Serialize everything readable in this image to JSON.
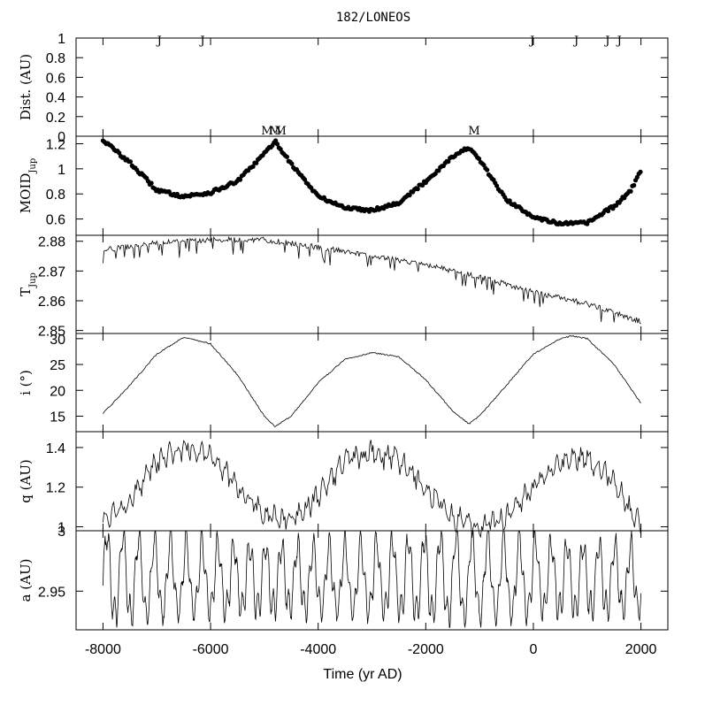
{
  "title": "182/LONEOS",
  "xlabel": "Time (yr AD)",
  "x_ticks": [
    -8000,
    -6000,
    -4000,
    -2000,
    0,
    2000
  ],
  "xlim": [
    -8500,
    2500
  ],
  "panels": [
    {
      "id": "dist",
      "ylabel": "Dist. (AU)",
      "ylim": [
        0,
        1
      ],
      "yticks": [
        0,
        0.2,
        0.4,
        0.6,
        0.8,
        1
      ],
      "tick_labels": [
        "0",
        "0.2",
        "0.4",
        "0.6",
        "0.8",
        "1"
      ]
    },
    {
      "id": "moid",
      "ylabel": "MOID",
      "ylabel_sub": "Jup",
      "ylim": [
        0.47,
        1.26
      ],
      "yticks": [
        0.6,
        0.8,
        1,
        1.2
      ],
      "tick_labels": [
        "0.6",
        "0.8",
        "1",
        "1.2"
      ]
    },
    {
      "id": "tjup",
      "ylabel": "T",
      "ylabel_sub": "Jup",
      "ylim": [
        2.849,
        2.882
      ],
      "yticks": [
        2.85,
        2.86,
        2.87,
        2.88
      ],
      "tick_labels": [
        "2.85",
        "2.86",
        "2.87",
        "2.88"
      ]
    },
    {
      "id": "incl",
      "ylabel": "i (°)",
      "ylim": [
        12,
        31
      ],
      "yticks": [
        15,
        20,
        25,
        30
      ],
      "tick_labels": [
        "15",
        "20",
        "25",
        "30"
      ]
    },
    {
      "id": "q",
      "ylabel": "q (AU)",
      "ylim": [
        0.98,
        1.48
      ],
      "yticks": [
        1,
        1.2,
        1.4
      ],
      "tick_labels": [
        "1",
        "1.2",
        "1.4"
      ]
    },
    {
      "id": "a",
      "ylabel": "a (AU)",
      "ylim": [
        2.918,
        3.0
      ],
      "yticks": [
        2.95,
        3
      ],
      "tick_labels": [
        "2.95",
        "3"
      ]
    }
  ],
  "chart_data": {
    "type": "scatter",
    "title": "182/LONEOS",
    "xlabel": "Time (yr AD)",
    "encounters_dist_panel": [
      {
        "label": "J",
        "x": -6950
      },
      {
        "label": "J",
        "x": -6150
      },
      {
        "label": "J",
        "x": -20
      },
      {
        "label": "J",
        "x": 800
      },
      {
        "label": "J",
        "x": 1380
      },
      {
        "label": "J",
        "x": 1600
      }
    ],
    "encounters_moid_panel": [
      {
        "label": "M",
        "x": -4950
      },
      {
        "label": "M",
        "x": -4800
      },
      {
        "label": "M",
        "x": -4700
      },
      {
        "label": "M",
        "x": -1100
      }
    ],
    "series": [
      {
        "name": "MOID_Jup",
        "style": "dots",
        "x": [
          -8000,
          -7500,
          -7000,
          -6500,
          -6000,
          -5500,
          -5000,
          -4800,
          -4500,
          -4000,
          -3500,
          -3000,
          -2500,
          -2000,
          -1500,
          -1200,
          -1000,
          -500,
          0,
          500,
          1000,
          1500,
          1800,
          2000
        ],
        "y": [
          1.23,
          1.05,
          0.83,
          0.78,
          0.81,
          0.9,
          1.12,
          1.22,
          1.04,
          0.78,
          0.69,
          0.67,
          0.73,
          0.9,
          1.1,
          1.17,
          1.07,
          0.75,
          0.62,
          0.56,
          0.57,
          0.7,
          0.82,
          0.99
        ]
      },
      {
        "name": "T_Jup",
        "style": "line",
        "x": [
          -8000,
          -7000,
          -6000,
          -5000,
          -4000,
          -3000,
          -2000,
          -1000,
          0,
          1000,
          2000
        ],
        "y": [
          2.877,
          2.8795,
          2.8805,
          2.8805,
          2.878,
          2.875,
          2.872,
          2.868,
          2.863,
          2.859,
          2.853
        ]
      },
      {
        "name": "i",
        "style": "line",
        "x": [
          -8000,
          -7500,
          -7000,
          -6500,
          -6000,
          -5500,
          -5000,
          -4800,
          -4500,
          -4000,
          -3500,
          -3000,
          -2500,
          -2000,
          -1500,
          -1200,
          -1000,
          -500,
          0,
          500,
          700,
          1000,
          1500,
          2000
        ],
        "y": [
          15.5,
          21,
          27,
          30.3,
          29,
          23,
          15,
          13,
          15,
          21.5,
          26,
          27.3,
          26.5,
          22,
          16,
          13.5,
          15,
          21,
          27,
          30,
          30.5,
          30,
          25,
          17.5
        ]
      },
      {
        "name": "q",
        "style": "line",
        "x": [
          -8000,
          -7500,
          -7000,
          -6500,
          -6000,
          -5500,
          -5000,
          -4500,
          -4000,
          -3500,
          -3000,
          -2500,
          -2000,
          -1500,
          -1000,
          -500,
          0,
          500,
          1000,
          1500,
          2000
        ],
        "y": [
          1.03,
          1.14,
          1.32,
          1.4,
          1.37,
          1.2,
          1.06,
          1.02,
          1.16,
          1.33,
          1.37,
          1.34,
          1.2,
          1.05,
          1.0,
          1.05,
          1.2,
          1.32,
          1.35,
          1.22,
          1.0
        ]
      },
      {
        "name": "a",
        "style": "line",
        "x": [
          -8000,
          2000
        ],
        "y_range": [
          2.92,
          3.0
        ],
        "mean": 2.955,
        "period_years": 295
      }
    ]
  }
}
